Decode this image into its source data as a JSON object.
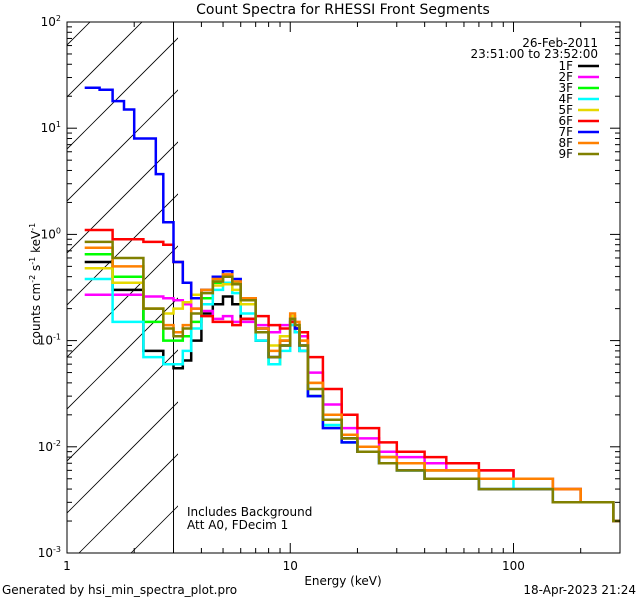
{
  "chart_data": {
    "type": "line",
    "title": "Count Spectra for RHESSI Front Segments",
    "xlabel": "Energy (keV)",
    "ylabel": "counts cm",
    "ylabel_parts": {
      "exp1": "-2",
      "mid": " s",
      "exp2": "-1",
      "unit": " keV",
      "exp3": "-1"
    },
    "xscale": "log",
    "yscale": "log",
    "xlim": [
      1,
      300
    ],
    "ylim": [
      0.001,
      100
    ],
    "x_ticks": [
      {
        "value": 1,
        "label": "1"
      },
      {
        "value": 10,
        "label": "10"
      },
      {
        "value": 100,
        "label": "100"
      }
    ],
    "y_ticks": [
      {
        "value": 0.001,
        "base": "10",
        "exp": "-3"
      },
      {
        "value": 0.01,
        "base": "10",
        "exp": "-2"
      },
      {
        "value": 0.1,
        "base": "10",
        "exp": "-1"
      },
      {
        "value": 1,
        "base": "10",
        "exp": "0"
      },
      {
        "value": 10,
        "base": "10",
        "exp": "1"
      },
      {
        "value": 100,
        "base": "10",
        "exp": "2"
      }
    ],
    "shaded_region": {
      "from": 1,
      "to": 3,
      "style": "diagonal-hatch"
    },
    "date": "26-Feb-2011",
    "time_range": "23:51:00 to 23:52:00",
    "annotation_lines": [
      "Includes Background",
      "Att A0, FDecim 1"
    ],
    "footer_left": "Generated by hsi_min_spectra_plot.pro",
    "footer_right": "18-Apr-2023 21:24",
    "series": [
      {
        "name": "1F",
        "color": "#000000",
        "x": [
          1.2,
          1.6,
          2.2,
          2.7,
          3,
          3.3,
          3.6,
          4,
          4.5,
          5,
          5.5,
          6,
          7,
          8,
          9,
          10,
          10.5,
          11,
          12,
          14,
          17,
          20,
          25,
          30,
          40,
          50,
          70,
          100,
          150,
          200,
          280
        ],
        "y": [
          0.55,
          0.3,
          0.08,
          0.06,
          0.055,
          0.065,
          0.1,
          0.18,
          0.22,
          0.26,
          0.22,
          0.16,
          0.1,
          0.07,
          0.1,
          0.15,
          0.12,
          0.08,
          0.03,
          0.018,
          0.012,
          0.01,
          0.008,
          0.007,
          0.006,
          0.006,
          0.005,
          0.005,
          0.004,
          0.003,
          0.002
        ]
      },
      {
        "name": "2F",
        "color": "#ff00ff",
        "x": [
          1.2,
          1.6,
          2.2,
          2.7,
          3,
          3.3,
          3.6,
          4,
          4.5,
          5,
          5.5,
          6,
          7,
          8,
          9,
          10,
          10.5,
          11,
          12,
          14,
          17,
          20,
          25,
          30,
          40,
          50,
          70,
          100,
          150,
          200,
          280
        ],
        "y": [
          0.27,
          0.27,
          0.26,
          0.25,
          0.24,
          0.22,
          0.2,
          0.19,
          0.16,
          0.17,
          0.15,
          0.15,
          0.14,
          0.12,
          0.14,
          0.16,
          0.13,
          0.11,
          0.05,
          0.025,
          0.015,
          0.012,
          0.009,
          0.008,
          0.007,
          0.006,
          0.006,
          0.005,
          0.004,
          0.003,
          0.002
        ]
      },
      {
        "name": "3F",
        "color": "#00ff00",
        "x": [
          1.2,
          1.6,
          2.2,
          2.7,
          3,
          3.3,
          3.6,
          4,
          4.5,
          5,
          5.5,
          6,
          7,
          8,
          9,
          10,
          10.5,
          11,
          12,
          14,
          17,
          20,
          25,
          30,
          40,
          50,
          70,
          100,
          150,
          200,
          280
        ],
        "y": [
          0.65,
          0.4,
          0.15,
          0.1,
          0.1,
          0.11,
          0.15,
          0.25,
          0.35,
          0.4,
          0.35,
          0.25,
          0.12,
          0.06,
          0.09,
          0.15,
          0.13,
          0.09,
          0.03,
          0.016,
          0.011,
          0.009,
          0.007,
          0.006,
          0.005,
          0.005,
          0.004,
          0.004,
          0.003,
          0.003,
          0.002
        ]
      },
      {
        "name": "4F",
        "color": "#00ffff",
        "x": [
          1.2,
          1.6,
          2.2,
          2.7,
          3,
          3.3,
          3.6,
          4,
          4.5,
          5,
          5.5,
          6,
          7,
          8,
          9,
          10,
          10.5,
          11,
          12,
          14,
          17,
          20,
          25,
          30,
          40,
          50,
          70,
          100,
          150,
          200,
          280
        ],
        "y": [
          0.38,
          0.15,
          0.07,
          0.06,
          0.06,
          0.08,
          0.13,
          0.22,
          0.3,
          0.35,
          0.28,
          0.18,
          0.1,
          0.06,
          0.08,
          0.14,
          0.12,
          0.08,
          0.03,
          0.016,
          0.011,
          0.009,
          0.007,
          0.006,
          0.005,
          0.005,
          0.005,
          0.004,
          0.003,
          0.003,
          0.002
        ]
      },
      {
        "name": "5F",
        "color": "#e6d800",
        "x": [
          1.2,
          1.6,
          2.2,
          2.7,
          3,
          3.3,
          3.6,
          4,
          4.5,
          5,
          5.5,
          6,
          7,
          8,
          9,
          10,
          10.5,
          11,
          12,
          14,
          17,
          20,
          25,
          30,
          40,
          50,
          70,
          100,
          150,
          200,
          280
        ],
        "y": [
          0.48,
          0.35,
          0.2,
          0.18,
          0.2,
          0.23,
          0.27,
          0.3,
          0.33,
          0.34,
          0.3,
          0.22,
          0.13,
          0.09,
          0.11,
          0.17,
          0.14,
          0.1,
          0.04,
          0.02,
          0.013,
          0.01,
          0.008,
          0.007,
          0.006,
          0.006,
          0.005,
          0.005,
          0.004,
          0.003,
          0.002
        ]
      },
      {
        "name": "6F",
        "color": "#ff0000",
        "x": [
          1.2,
          1.6,
          2.2,
          2.7,
          3,
          3.3,
          3.6,
          4,
          4.5,
          5,
          5.5,
          6,
          7,
          8,
          9,
          10,
          10.5,
          11,
          12,
          14,
          17,
          20,
          25,
          30,
          40,
          50,
          70,
          100,
          150,
          200,
          280
        ],
        "y": [
          1.1,
          0.9,
          0.85,
          0.8,
          0.55,
          0.35,
          0.25,
          0.17,
          0.15,
          0.15,
          0.14,
          0.16,
          0.17,
          0.14,
          0.13,
          0.15,
          0.13,
          0.12,
          0.07,
          0.035,
          0.02,
          0.015,
          0.011,
          0.009,
          0.008,
          0.007,
          0.006,
          0.005,
          0.004,
          0.003,
          0.002
        ]
      },
      {
        "name": "7F",
        "color": "#0000ff",
        "x": [
          1.2,
          1.4,
          1.6,
          1.8,
          2,
          2.2,
          2.5,
          2.7,
          3,
          3.3,
          3.6,
          4,
          4.5,
          5,
          5.5,
          6,
          7,
          8,
          9,
          10,
          10.5,
          11,
          12,
          14,
          17,
          20,
          25,
          30,
          40,
          50,
          70,
          100,
          150,
          200,
          280
        ],
        "y": [
          24,
          23,
          18,
          15,
          8,
          8,
          3.7,
          1.3,
          0.55,
          0.35,
          0.25,
          0.3,
          0.4,
          0.45,
          0.38,
          0.25,
          0.13,
          0.07,
          0.09,
          0.16,
          0.13,
          0.09,
          0.03,
          0.015,
          0.011,
          0.009,
          0.007,
          0.006,
          0.005,
          0.005,
          0.004,
          0.004,
          0.003,
          0.003,
          0.002
        ]
      },
      {
        "name": "8F",
        "color": "#ff8000",
        "x": [
          1.2,
          1.6,
          2.2,
          2.7,
          3,
          3.3,
          3.6,
          4,
          4.5,
          5,
          5.5,
          6,
          7,
          8,
          9,
          10,
          10.5,
          11,
          12,
          14,
          17,
          20,
          25,
          30,
          40,
          50,
          70,
          100,
          150,
          200,
          280
        ],
        "y": [
          0.75,
          0.5,
          0.2,
          0.14,
          0.12,
          0.14,
          0.2,
          0.3,
          0.38,
          0.42,
          0.36,
          0.25,
          0.13,
          0.08,
          0.1,
          0.18,
          0.15,
          0.1,
          0.04,
          0.02,
          0.013,
          0.01,
          0.008,
          0.007,
          0.006,
          0.006,
          0.005,
          0.005,
          0.004,
          0.003,
          0.002
        ]
      },
      {
        "name": "9F",
        "color": "#808000",
        "x": [
          1.2,
          1.6,
          2.2,
          2.7,
          3,
          3.3,
          3.6,
          4,
          4.5,
          5,
          5.5,
          6,
          7,
          8,
          9,
          10,
          10.5,
          11,
          12,
          14,
          17,
          20,
          25,
          30,
          40,
          50,
          70,
          100,
          150,
          200,
          280
        ],
        "y": [
          0.85,
          0.6,
          0.2,
          0.13,
          0.11,
          0.13,
          0.18,
          0.28,
          0.36,
          0.4,
          0.34,
          0.24,
          0.12,
          0.07,
          0.09,
          0.16,
          0.14,
          0.09,
          0.035,
          0.018,
          0.012,
          0.009,
          0.007,
          0.006,
          0.005,
          0.005,
          0.004,
          0.004,
          0.003,
          0.003,
          0.002
        ]
      }
    ]
  }
}
